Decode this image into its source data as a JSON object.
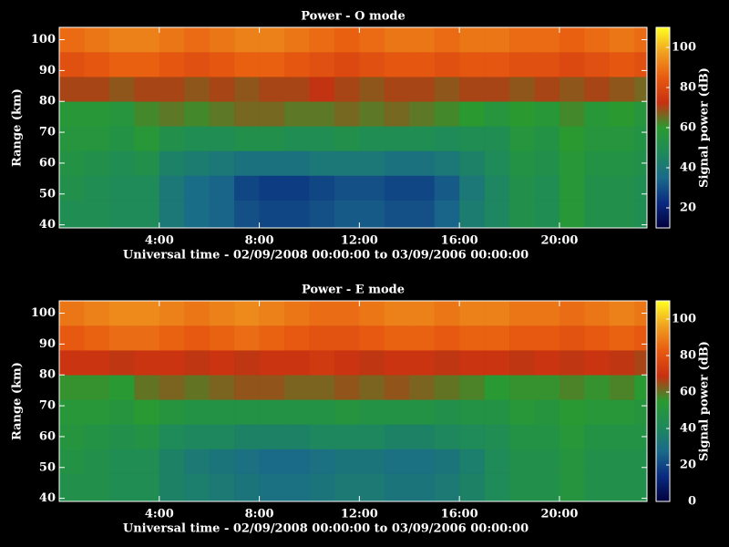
{
  "chart_data": [
    {
      "type": "heatmap",
      "title": "Power - O mode",
      "x_label": "Universal time - 02/09/2008 00:00:00 to 03/09/2006 00:00:00",
      "y_label": "Range (km)",
      "colorbar_label": "Signal power (dB)",
      "xbins": [
        0,
        1,
        2,
        3,
        4,
        5,
        6,
        7,
        8,
        9,
        10,
        11,
        12,
        13,
        14,
        15,
        16,
        17,
        18,
        19,
        20,
        21,
        22,
        23,
        23.5
      ],
      "ybins": [
        39,
        48,
        56,
        64,
        72,
        80,
        88,
        96,
        104
      ],
      "z": [
        [
          50,
          50,
          48,
          48,
          40,
          36,
          34,
          30,
          28,
          28,
          30,
          32,
          32,
          30,
          30,
          34,
          42,
          46,
          52,
          50,
          58,
          52,
          52,
          50
        ],
        [
          52,
          50,
          48,
          48,
          40,
          36,
          34,
          28,
          26,
          26,
          28,
          30,
          30,
          28,
          28,
          32,
          40,
          46,
          52,
          50,
          58,
          52,
          52,
          50
        ],
        [
          54,
          52,
          50,
          52,
          44,
          42,
          40,
          38,
          38,
          38,
          40,
          40,
          40,
          38,
          38,
          40,
          44,
          48,
          54,
          52,
          58,
          54,
          54,
          52
        ],
        [
          56,
          56,
          54,
          58,
          52,
          50,
          50,
          52,
          52,
          50,
          50,
          52,
          50,
          50,
          50,
          48,
          50,
          50,
          56,
          54,
          60,
          56,
          56,
          54
        ],
        [
          58,
          58,
          56,
          62,
          64,
          62,
          64,
          66,
          66,
          64,
          64,
          66,
          64,
          66,
          64,
          62,
          60,
          56,
          60,
          58,
          62,
          58,
          60,
          56
        ],
        [
          70,
          70,
          68,
          70,
          70,
          68,
          70,
          68,
          70,
          70,
          72,
          70,
          68,
          70,
          70,
          68,
          70,
          70,
          68,
          70,
          68,
          70,
          68,
          66
        ],
        [
          82,
          84,
          86,
          86,
          84,
          82,
          84,
          86,
          86,
          84,
          82,
          80,
          82,
          84,
          84,
          82,
          84,
          84,
          82,
          82,
          80,
          82,
          84,
          82
        ],
        [
          88,
          90,
          92,
          92,
          90,
          88,
          90,
          92,
          92,
          90,
          88,
          86,
          88,
          90,
          90,
          88,
          90,
          90,
          88,
          88,
          86,
          88,
          90,
          88
        ]
      ],
      "xlim": [
        0,
        23.5
      ],
      "ylim": [
        39,
        104
      ],
      "xticks": [
        {
          "value": 4,
          "label": "4:00"
        },
        {
          "value": 8,
          "label": "8:00"
        },
        {
          "value": 12,
          "label": "12:00"
        },
        {
          "value": 16,
          "label": "16:00"
        },
        {
          "value": 20,
          "label": "20:00"
        }
      ],
      "yticks": [
        40,
        50,
        60,
        70,
        80,
        90,
        100
      ],
      "zlim": [
        10,
        110
      ],
      "zticks": [
        20,
        40,
        60,
        80,
        100
      ],
      "colors": [
        "#00003c",
        "#0a2a80",
        "#1a6a8a",
        "#1e8a5a",
        "#2a9a30",
        "#c83010",
        "#e85a10",
        "#f0a020",
        "#ffff20"
      ]
    },
    {
      "type": "heatmap",
      "title": "Power - E mode",
      "x_label": "Universal time - 02/09/2008 00:00:00 to 03/09/2006 00:00:00",
      "y_label": "Range (km)",
      "colorbar_label": "Signal power (dB)",
      "xbins": [
        0,
        1,
        2,
        3,
        4,
        5,
        6,
        7,
        8,
        9,
        10,
        11,
        12,
        13,
        14,
        15,
        16,
        17,
        18,
        19,
        20,
        21,
        22,
        23,
        23.5
      ],
      "ybins": [
        39,
        48,
        56,
        64,
        72,
        80,
        88,
        96,
        104
      ],
      "z": [
        [
          46,
          46,
          44,
          44,
          38,
          36,
          34,
          32,
          30,
          30,
          32,
          34,
          34,
          32,
          32,
          34,
          38,
          42,
          46,
          46,
          50,
          46,
          46,
          46
        ],
        [
          48,
          46,
          44,
          44,
          38,
          34,
          32,
          30,
          28,
          28,
          30,
          32,
          32,
          30,
          30,
          32,
          36,
          42,
          46,
          46,
          50,
          46,
          46,
          46
        ],
        [
          50,
          48,
          46,
          48,
          42,
          40,
          40,
          38,
          38,
          38,
          40,
          40,
          40,
          38,
          38,
          40,
          42,
          44,
          48,
          48,
          52,
          48,
          48,
          48
        ],
        [
          52,
          52,
          50,
          54,
          50,
          48,
          48,
          48,
          48,
          48,
          48,
          50,
          48,
          48,
          48,
          46,
          48,
          48,
          52,
          50,
          54,
          52,
          52,
          50
        ],
        [
          56,
          56,
          54,
          60,
          62,
          60,
          62,
          64,
          64,
          62,
          62,
          64,
          62,
          64,
          62,
          60,
          58,
          54,
          56,
          56,
          58,
          56,
          58,
          54
        ],
        [
          70,
          70,
          68,
          70,
          70,
          68,
          70,
          68,
          70,
          70,
          72,
          70,
          68,
          70,
          70,
          68,
          70,
          70,
          68,
          70,
          68,
          70,
          68,
          66
        ],
        [
          82,
          84,
          86,
          86,
          84,
          82,
          84,
          86,
          84,
          82,
          80,
          80,
          82,
          84,
          84,
          82,
          84,
          84,
          82,
          82,
          80,
          82,
          84,
          82
        ],
        [
          88,
          90,
          92,
          92,
          90,
          88,
          90,
          92,
          90,
          88,
          86,
          86,
          88,
          90,
          90,
          88,
          90,
          90,
          88,
          88,
          86,
          88,
          90,
          88
        ]
      ],
      "xlim": [
        0,
        23.5
      ],
      "ylim": [
        39,
        104
      ],
      "xticks": [
        {
          "value": 4,
          "label": "4:00"
        },
        {
          "value": 8,
          "label": "8:00"
        },
        {
          "value": 12,
          "label": "12:00"
        },
        {
          "value": 16,
          "label": "16:00"
        },
        {
          "value": 20,
          "label": "20:00"
        }
      ],
      "yticks": [
        40,
        50,
        60,
        70,
        80,
        90,
        100
      ],
      "zlim": [
        0,
        110
      ],
      "zticks": [
        0,
        20,
        40,
        60,
        80,
        100
      ],
      "colors": [
        "#00003c",
        "#0a2a80",
        "#1a6a8a",
        "#1e8a5a",
        "#2a9a30",
        "#c83010",
        "#e85a10",
        "#f0a020",
        "#ffff20"
      ]
    }
  ]
}
